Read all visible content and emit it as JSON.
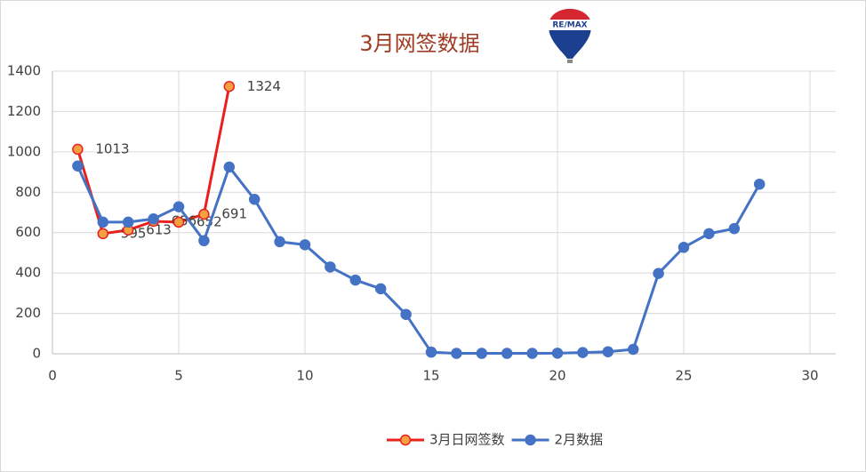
{
  "chart_data": {
    "type": "line",
    "title": "3月网签数据",
    "logo": "RE/MAX",
    "x": [
      1,
      2,
      3,
      4,
      5,
      6,
      7,
      8,
      9,
      10,
      11,
      12,
      13,
      14,
      15,
      16,
      17,
      18,
      19,
      20,
      21,
      22,
      23,
      24,
      25,
      26,
      27,
      28
    ],
    "series": [
      {
        "name": "3月日网签数",
        "color": "#e8201e",
        "marker_color": "#f4a040",
        "show_labels": true,
        "values": [
          1013,
          595,
          613,
          656,
          652,
          691,
          1324,
          null,
          null,
          null,
          null,
          null,
          null,
          null,
          null,
          null,
          null,
          null,
          null,
          null,
          null,
          null,
          null,
          null,
          null,
          null,
          null,
          null
        ]
      },
      {
        "name": "2月数据",
        "color": "#4472c4",
        "marker_color": "#4472c4",
        "show_labels": false,
        "values": [
          930,
          652,
          652,
          668,
          728,
          560,
          925,
          765,
          555,
          540,
          430,
          365,
          322,
          195,
          8,
          2,
          2,
          2,
          2,
          3,
          6,
          10,
          22,
          398,
          527,
          595,
          620,
          840
        ]
      }
    ],
    "xlim": [
      0,
      30
    ],
    "xticks": [
      0,
      5,
      10,
      15,
      20,
      25,
      30
    ],
    "ylim": [
      0,
      1400
    ],
    "yticks": [
      0,
      200,
      400,
      600,
      800,
      1000,
      1200,
      1400
    ],
    "grid": true,
    "legend": "bottom"
  }
}
